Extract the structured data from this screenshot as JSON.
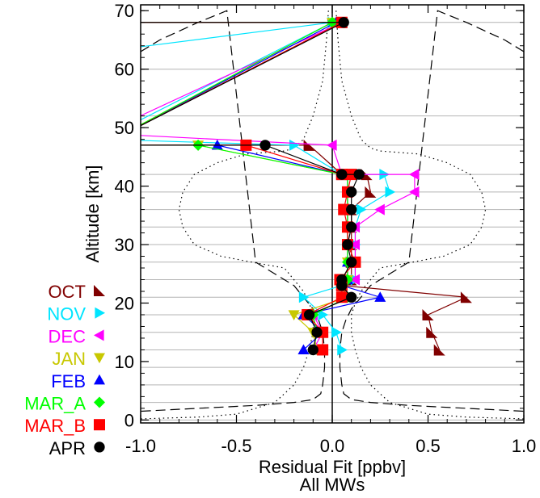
{
  "chart_data": {
    "type": "line",
    "title": "",
    "xlabel": "Residual Fit [ppbv]",
    "xlabel2": "All MWs",
    "ylabel": "Altitude [km]",
    "xlim": [
      -1.0,
      1.0
    ],
    "ylim": [
      -0.5,
      71
    ],
    "xticks": [
      {
        "value": -1.0,
        "label": "-1.0"
      },
      {
        "value": -0.5,
        "label": "-0.5"
      },
      {
        "value": 0.0,
        "label": "0.0"
      },
      {
        "value": 0.5,
        "label": "0.5"
      },
      {
        "value": 1.0,
        "label": "1.0"
      }
    ],
    "yticks": [
      {
        "value": 0,
        "label": "0"
      },
      {
        "value": 10,
        "label": "10"
      },
      {
        "value": 20,
        "label": "20"
      },
      {
        "value": 30,
        "label": "30"
      },
      {
        "value": 40,
        "label": "40"
      },
      {
        "value": 50,
        "label": "50"
      },
      {
        "value": 60,
        "label": "60"
      },
      {
        "value": 70,
        "label": "70"
      }
    ],
    "grid_levels": [
      0,
      3,
      6,
      9,
      12,
      15,
      18,
      21,
      24,
      27,
      30,
      33,
      36,
      39,
      42,
      47,
      52,
      60,
      68
    ],
    "legend_position": "left",
    "series": [
      {
        "name": "OCT",
        "color": "#800000",
        "marker": "corner-triangle",
        "x": [
          -1.2,
          0.05,
          -1.2,
          -0.12,
          0.05,
          0.18,
          0.2,
          0.1,
          0.1,
          0.1,
          0.1,
          0.1,
          0.05,
          0.7,
          0.5,
          0.52,
          0.56
        ],
        "y": [
          68,
          68,
          47,
          47,
          42,
          42,
          39,
          36,
          33,
          30,
          27,
          24,
          23,
          21,
          18,
          15,
          12
        ]
      },
      {
        "name": "NOV",
        "color": "#00e5ff",
        "marker": "triangle-right",
        "x": [
          -1.2,
          0.0,
          -1.2,
          -0.2,
          0.05,
          0.27,
          0.3,
          0.15,
          0.12,
          0.12,
          0.12,
          0.12,
          0.05,
          -0.15,
          -0.05,
          0.02,
          0.05
        ],
        "y": [
          63,
          68,
          48,
          47,
          42,
          42,
          39,
          36,
          33,
          30,
          27,
          24,
          23,
          21,
          18,
          15,
          12
        ]
      },
      {
        "name": "DEC",
        "color": "#ff00ff",
        "marker": "triangle-left",
        "x": [
          -1.2,
          0.05,
          -1.2,
          0.0,
          0.05,
          0.43,
          0.43,
          0.25,
          0.12,
          0.12,
          0.12,
          0.12,
          0.05,
          0.08,
          -0.1,
          -0.05,
          -0.1
        ],
        "y": [
          68,
          68,
          49,
          47,
          42,
          42,
          39,
          36,
          33,
          30,
          27,
          24,
          23,
          21,
          18,
          15,
          12
        ]
      },
      {
        "name": "JAN",
        "color": "#c8c800",
        "marker": "triangle-down",
        "x": [
          -1.2,
          0.0,
          -1.2,
          -0.7,
          0.05,
          0.08,
          0.08,
          0.08,
          0.08,
          0.08,
          0.08,
          0.08,
          0.05,
          0.08,
          -0.2,
          -0.1,
          -0.08
        ],
        "y": [
          68,
          68,
          47,
          47,
          42,
          42,
          39,
          36,
          33,
          30,
          27,
          24,
          23,
          21,
          18,
          15,
          12
        ]
      },
      {
        "name": "FEB",
        "color": "#0000ff",
        "marker": "triangle-up",
        "x": [
          -1.2,
          0.02,
          -1.2,
          -0.6,
          0.05,
          0.08,
          0.08,
          0.08,
          0.08,
          0.08,
          0.08,
          0.08,
          0.05,
          0.25,
          -0.15,
          -0.05,
          -0.15
        ],
        "y": [
          68,
          68,
          47,
          47,
          42,
          42,
          39,
          36,
          33,
          30,
          27,
          24,
          23,
          21,
          18,
          15,
          12
        ]
      },
      {
        "name": "MAR_A",
        "color": "#00ff00",
        "marker": "diamond",
        "x": [
          -1.2,
          0.0,
          -1.2,
          -0.7,
          0.05,
          0.08,
          0.08,
          0.08,
          0.08,
          0.08,
          0.08,
          0.08,
          0.05,
          0.08,
          -0.1,
          -0.08,
          -0.1
        ],
        "y": [
          68,
          68,
          47,
          47,
          42,
          42,
          39,
          36,
          33,
          30,
          27,
          24,
          23,
          21,
          18,
          15,
          12
        ]
      },
      {
        "name": "MAR_B",
        "color": "#ff0000",
        "marker": "square",
        "x": [
          -1.2,
          0.05,
          -1.2,
          -0.45,
          0.05,
          0.1,
          0.08,
          0.06,
          0.08,
          0.08,
          0.12,
          0.04,
          0.05,
          0.05,
          -0.13,
          -0.05,
          -0.05
        ],
        "y": [
          68,
          68,
          47,
          47,
          42,
          42,
          39,
          36,
          33,
          30,
          27,
          24,
          23,
          21,
          18,
          15,
          12
        ]
      },
      {
        "name": "APR",
        "color": "#000000",
        "marker": "circle",
        "x": [
          -1.2,
          0.06,
          -1.2,
          -0.35,
          0.05,
          0.14,
          0.1,
          0.1,
          0.1,
          0.08,
          0.1,
          0.05,
          0.05,
          0.1,
          -0.12,
          -0.08,
          -0.1
        ],
        "y": [
          68,
          68,
          47,
          47,
          42,
          42,
          39,
          36,
          33,
          30,
          27,
          24,
          23,
          21,
          18,
          15,
          12
        ]
      }
    ],
    "reference_curves": [
      {
        "style": "dotted",
        "x": [
          0.02,
          0.03,
          0.05,
          0.1,
          0.15,
          0.2,
          0.25,
          0.45,
          0.6,
          0.72,
          0.78,
          0.8,
          0.78,
          0.72,
          0.58,
          0.42,
          0.25,
          0.2,
          0.15,
          0.12,
          0.1,
          0.1,
          0.12,
          0.15,
          0.2,
          0.3,
          0.5,
          0.7,
          1.0
        ],
        "y": [
          70,
          65,
          58,
          52,
          48,
          46.5,
          46,
          45.5,
          44,
          42,
          39,
          36,
          33,
          30,
          28,
          27,
          26,
          24,
          22,
          20,
          18,
          15,
          12,
          9,
          6,
          3,
          1,
          0.5,
          0.2
        ]
      },
      {
        "style": "dashed",
        "x": [
          1.0,
          0.9,
          0.7,
          0.55,
          0.4,
          0.3,
          0.2,
          0.15,
          0.1,
          0.07,
          0.05,
          0.04,
          0.04,
          0.05,
          0.06,
          0.1,
          0.2,
          0.4,
          0.7,
          1.0
        ],
        "y": [
          63,
          65,
          68,
          70,
          27,
          25,
          23,
          21,
          19,
          17,
          15,
          12,
          9,
          6,
          4.5,
          3.5,
          3,
          2.5,
          2,
          1.5
        ]
      }
    ],
    "zero_line": true
  }
}
